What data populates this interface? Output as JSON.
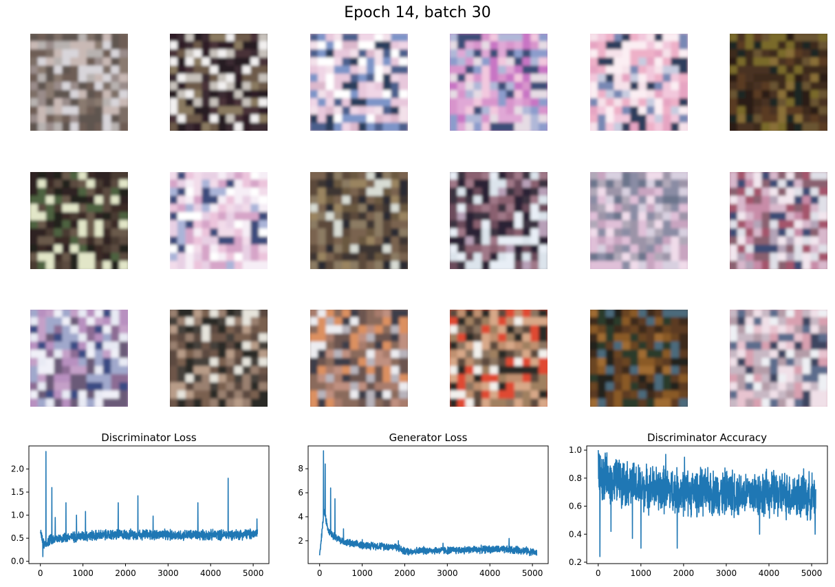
{
  "figure": {
    "title": "Epoch 14, batch 30"
  },
  "sample_grid": {
    "tiles": [
      {
        "content": "generated-sample",
        "palette": [
          "#8a7a70",
          "#b8b2b0",
          "#6e5d55",
          "#d8d5da",
          "#9a8c8a",
          "#5f5450",
          "#c9b9b5",
          "#7d6e66"
        ]
      },
      {
        "content": "generated-sample",
        "palette": [
          "#2f1f26",
          "#4a3238",
          "#f2f0f0",
          "#6d5a4a",
          "#3b2a30",
          "#251a24",
          "#8a7a60",
          "#c8c2bc"
        ]
      },
      {
        "content": "generated-sample",
        "palette": [
          "#e8c8dc",
          "#f0d6e6",
          "#2b3c5c",
          "#7d94c8",
          "#dcb8cc",
          "#ffffff",
          "#4c5f8c",
          "#f3e1ea"
        ]
      },
      {
        "content": "generated-sample",
        "palette": [
          "#c874c4",
          "#e0a8d6",
          "#e6dce4",
          "#3d4e78",
          "#f2c8de",
          "#8c9ccc",
          "#d894cc",
          "#b0b8d8"
        ]
      },
      {
        "content": "generated-sample",
        "palette": [
          "#f2c8dc",
          "#e6a4c2",
          "#f6e2ea",
          "#2e3c5c",
          "#c8cce0",
          "#eeb0c8",
          "#7888b4",
          "#fbeef3"
        ]
      },
      {
        "content": "generated-sample",
        "palette": [
          "#3d2a1c",
          "#5a3a22",
          "#6b5530",
          "#2a1e18",
          "#7a6a2a",
          "#4a3020",
          "#8a7038",
          "#1c2620"
        ]
      },
      {
        "content": "generated-sample",
        "palette": [
          "#2e2420",
          "#4a3a30",
          "#5c4c40",
          "#3a2c26",
          "#e2e6c8",
          "#6a5a4c",
          "#24201c",
          "#4e6240"
        ]
      },
      {
        "content": "generated-sample",
        "palette": [
          "#f6eef6",
          "#ffffff",
          "#e8d0e4",
          "#3c4c7c",
          "#ecc4dc",
          "#aab4d8",
          "#f2dcea",
          "#d6a4c8"
        ]
      },
      {
        "content": "generated-sample",
        "palette": [
          "#7a6450",
          "#5c4a3a",
          "#9a8460",
          "#3c3430",
          "#d8dcd4",
          "#6a5840",
          "#8c7c64",
          "#2c2a30"
        ]
      },
      {
        "content": "generated-sample",
        "palette": [
          "#6c4c5c",
          "#8a6070",
          "#dce4ec",
          "#3a3040",
          "#b8a0b8",
          "#2a2436",
          "#e8eef6",
          "#a07888"
        ]
      },
      {
        "content": "generated-sample",
        "palette": [
          "#c8a4c0",
          "#e0c0d8",
          "#8a8ca4",
          "#b0a8b8",
          "#6c748c",
          "#d8d0e0",
          "#9c94a8",
          "#f0dcea"
        ]
      },
      {
        "content": "generated-sample",
        "palette": [
          "#a4546c",
          "#c88ca8",
          "#e0e0e8",
          "#3c4c74",
          "#b4a4b8",
          "#8a6070",
          "#d8b8cc",
          "#f2e6ee"
        ]
      },
      {
        "content": "generated-sample",
        "palette": [
          "#b890c0",
          "#8c6c94",
          "#e8eaf4",
          "#3a4c84",
          "#a0a8cc",
          "#c4a0c8",
          "#6a5a78",
          "#f0f0f8"
        ]
      },
      {
        "content": "generated-sample",
        "palette": [
          "#2c2a28",
          "#5c4a40",
          "#7a6050",
          "#e6e4dc",
          "#9a8070",
          "#44403a",
          "#b89c88",
          "#6e5648"
        ]
      },
      {
        "content": "generated-sample",
        "palette": [
          "#8a6a5c",
          "#a87c6c",
          "#ececf0",
          "#3c3c48",
          "#c09080",
          "#6c5450",
          "#dc9060",
          "#b8b4bc"
        ]
      },
      {
        "content": "generated-sample",
        "palette": [
          "#e04830",
          "#c09070",
          "#5c4a3c",
          "#f2f0ec",
          "#8c7460",
          "#a08060",
          "#2c2c28",
          "#d8a888"
        ]
      },
      {
        "content": "generated-sample",
        "palette": [
          "#3c2a1c",
          "#6a4420",
          "#8a5a28",
          "#24201c",
          "#4c6a7c",
          "#a06c30",
          "#2c3a2c",
          "#5c3a20"
        ]
      },
      {
        "content": "generated-sample",
        "palette": [
          "#d8a0b0",
          "#e8c4d0",
          "#5c6c8c",
          "#eef0f4",
          "#b49ca8",
          "#3c4460",
          "#c8b8c4",
          "#f0e0e8"
        ]
      }
    ]
  },
  "chart_data": [
    {
      "type": "line",
      "title": "Discriminator Loss",
      "xlabel": "",
      "ylabel": "",
      "xlim": [
        -270,
        5370
      ],
      "ylim": [
        -0.05,
        2.5
      ],
      "xticks": [
        0,
        1000,
        2000,
        3000,
        4000,
        5000
      ],
      "yticks": [
        0.0,
        0.5,
        1.0,
        1.5,
        2.0
      ],
      "ytick_labels": [
        "0.0",
        "0.5",
        "1.0",
        "1.5",
        "2.0"
      ],
      "color": "#1f77b4",
      "grid": false,
      "n_points": 5100,
      "envelope": [
        [
          0,
          0.7
        ],
        [
          40,
          0.45
        ],
        [
          100,
          0.35
        ],
        [
          200,
          0.45
        ],
        [
          400,
          0.5
        ],
        [
          700,
          0.52
        ],
        [
          1000,
          0.55
        ],
        [
          1500,
          0.57
        ],
        [
          2000,
          0.58
        ],
        [
          2500,
          0.58
        ],
        [
          3000,
          0.57
        ],
        [
          3500,
          0.57
        ],
        [
          4000,
          0.57
        ],
        [
          4500,
          0.58
        ],
        [
          5000,
          0.59
        ],
        [
          5100,
          0.62
        ]
      ],
      "noise_amplitude": 0.09,
      "spikes": [
        [
          60,
          0.1
        ],
        [
          130,
          2.38
        ],
        [
          270,
          1.6
        ],
        [
          350,
          0.95
        ],
        [
          600,
          1.27
        ],
        [
          850,
          1.0
        ],
        [
          1060,
          1.08
        ],
        [
          1830,
          1.27
        ],
        [
          2290,
          1.42
        ],
        [
          2650,
          0.98
        ],
        [
          3700,
          1.27
        ],
        [
          4410,
          1.8
        ],
        [
          5090,
          0.92
        ]
      ]
    },
    {
      "type": "line",
      "title": "Generator Loss",
      "xlabel": "",
      "ylabel": "",
      "xlim": [
        -270,
        5370
      ],
      "ylim": [
        0.1,
        9.9
      ],
      "xticks": [
        0,
        1000,
        2000,
        3000,
        4000,
        5000
      ],
      "yticks": [
        2,
        4,
        6,
        8
      ],
      "ytick_labels": [
        "2",
        "4",
        "6",
        "8"
      ],
      "color": "#1f77b4",
      "grid": false,
      "n_points": 5100,
      "envelope": [
        [
          0,
          0.7
        ],
        [
          50,
          2.5
        ],
        [
          100,
          4.5
        ],
        [
          200,
          3.0
        ],
        [
          300,
          2.5
        ],
        [
          500,
          2.0
        ],
        [
          800,
          1.7
        ],
        [
          1200,
          1.6
        ],
        [
          1800,
          1.5
        ],
        [
          2000,
          1.1
        ],
        [
          2500,
          1.2
        ],
        [
          3000,
          1.2
        ],
        [
          4000,
          1.3
        ],
        [
          4800,
          1.2
        ],
        [
          5100,
          1.0
        ]
      ],
      "noise_amplitude": 0.25,
      "spikes": [
        [
          90,
          9.5
        ],
        [
          130,
          8.4
        ],
        [
          260,
          6.4
        ],
        [
          360,
          5.5
        ],
        [
          560,
          3.0
        ],
        [
          1000,
          2.1
        ],
        [
          1850,
          2.0
        ],
        [
          4450,
          2.2
        ],
        [
          2900,
          1.8
        ]
      ]
    },
    {
      "type": "line",
      "title": "Discriminator Accuracy",
      "xlabel": "",
      "ylabel": "",
      "xlim": [
        -270,
        5370
      ],
      "ylim": [
        0.19,
        1.03
      ],
      "xticks": [
        0,
        1000,
        2000,
        3000,
        4000,
        5000
      ],
      "yticks": [
        0.2,
        0.4,
        0.6,
        0.8,
        1.0
      ],
      "ytick_labels": [
        "0.2",
        "0.4",
        "0.6",
        "0.8",
        "1.0"
      ],
      "color": "#1f77b4",
      "grid": false,
      "n_points": 5100,
      "envelope": [
        [
          0,
          0.85
        ],
        [
          100,
          0.8
        ],
        [
          500,
          0.78
        ],
        [
          1000,
          0.73
        ],
        [
          1500,
          0.72
        ],
        [
          2000,
          0.7
        ],
        [
          3000,
          0.7
        ],
        [
          4000,
          0.69
        ],
        [
          5000,
          0.67
        ],
        [
          5100,
          0.66
        ]
      ],
      "noise_amplitude": 0.13,
      "spikes": [
        [
          0,
          1.0
        ],
        [
          40,
          0.24
        ],
        [
          300,
          0.42
        ],
        [
          800,
          0.37
        ],
        [
          1000,
          0.3
        ],
        [
          1850,
          0.3
        ],
        [
          1580,
          0.97
        ],
        [
          2020,
          0.95
        ],
        [
          3780,
          0.4
        ],
        [
          4900,
          0.5
        ],
        [
          5080,
          0.4
        ]
      ]
    }
  ]
}
